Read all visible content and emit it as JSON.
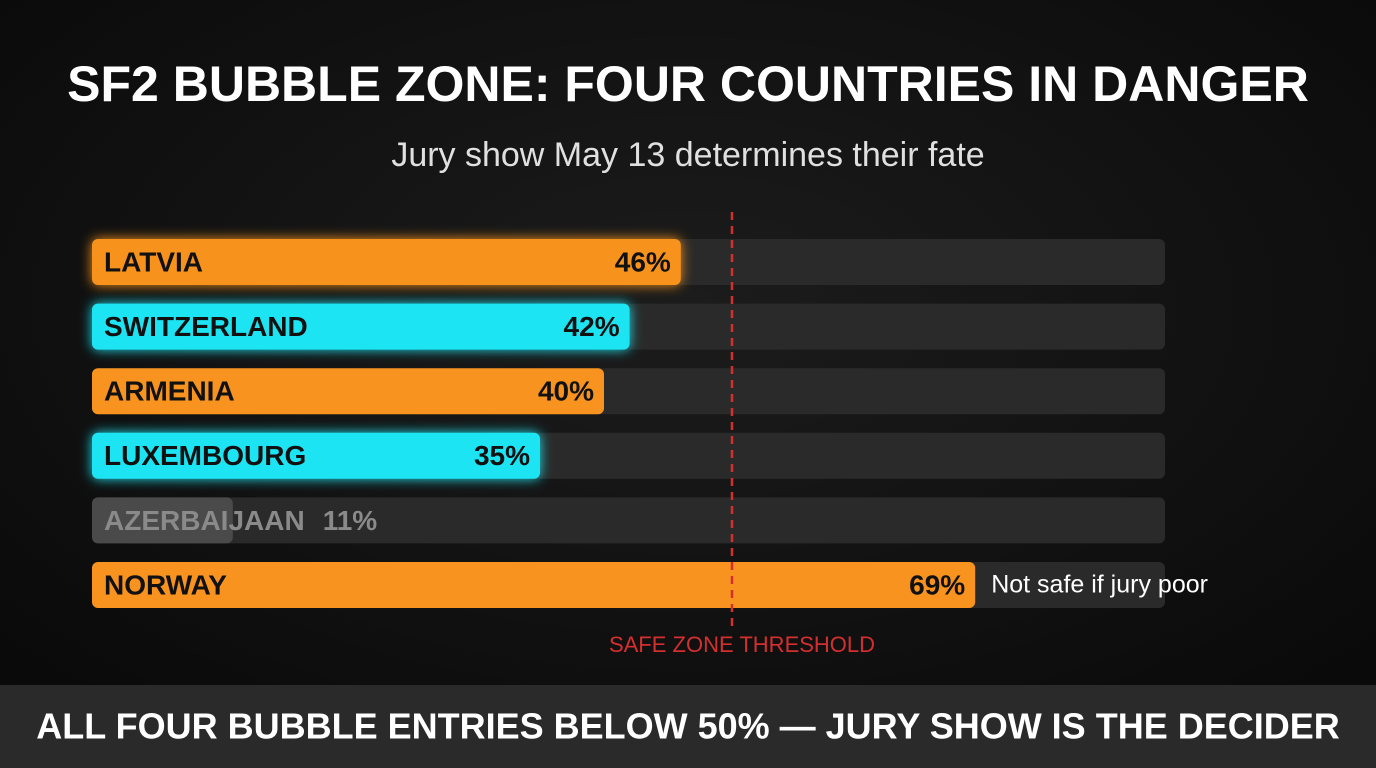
{
  "chart_data": {
    "type": "hbar",
    "title": "SF2 BUBBLE ZONE: FOUR COUNTRIES IN DANGER",
    "subtitle": "Jury show May 13 determines their fate",
    "categories": [
      "LATVIA",
      "SWITZERLAND",
      "ARMENIA",
      "LUXEMBOURG",
      "AZERBAIJAAN",
      "NORWAY"
    ],
    "values": [
      46,
      42,
      40,
      35,
      11,
      69
    ],
    "value_labels": [
      "46%",
      "42%",
      "40%",
      "35%",
      "11%",
      "69%"
    ],
    "colors": [
      "#f7931e",
      "#1fe4f2",
      "#f7931e",
      "#1fe4f2",
      "#4a4a4a",
      "#f7931e"
    ],
    "text_colors": [
      "#111111",
      "#111111",
      "#111111",
      "#111111",
      "#8a8a8a",
      "#111111"
    ],
    "glow": [
      true,
      true,
      false,
      true,
      false,
      false
    ],
    "threshold": {
      "value": 50,
      "label": "SAFE ZONE THRESHOLD",
      "color": "#d32f2f"
    },
    "annotation": {
      "row": 5,
      "text": "Not safe if jury poor"
    },
    "footer": "ALL FOUR BUBBLE ENTRIES BELOW 50% — JURY SHOW IS THE DECIDER"
  }
}
